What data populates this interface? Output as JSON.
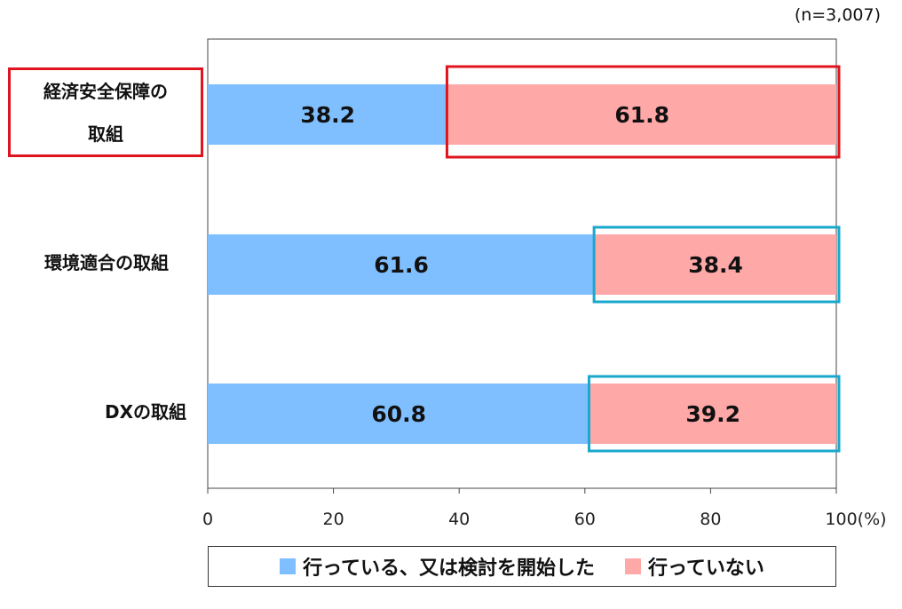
{
  "note": "(n=3,007)",
  "colors": {
    "done": "#7fbfff",
    "not_done": "#ffa8a8",
    "highlight_red": "#e0141e",
    "highlight_blue": "#1aa8cc"
  },
  "chart_data": {
    "type": "bar",
    "orientation": "horizontal",
    "stacked": true,
    "categories": [
      "経済安全保障の取組",
      "環境適合の取組",
      "DXの取組"
    ],
    "series": [
      {
        "name": "行っている、又は検討を開始した",
        "values": [
          38.2,
          61.6,
          60.8
        ]
      },
      {
        "name": "行っていない",
        "values": [
          61.8,
          38.4,
          39.2
        ]
      }
    ],
    "xlim": [
      0,
      100
    ],
    "x_ticks": [
      "0",
      "20",
      "40",
      "60",
      "80",
      "100(%)"
    ],
    "grid": false,
    "legend_position": "bottom"
  },
  "category_lines": [
    [
      "経済安全保障の",
      "取組"
    ],
    [
      "環境適合の取組"
    ],
    [
      "DXの取組"
    ]
  ]
}
